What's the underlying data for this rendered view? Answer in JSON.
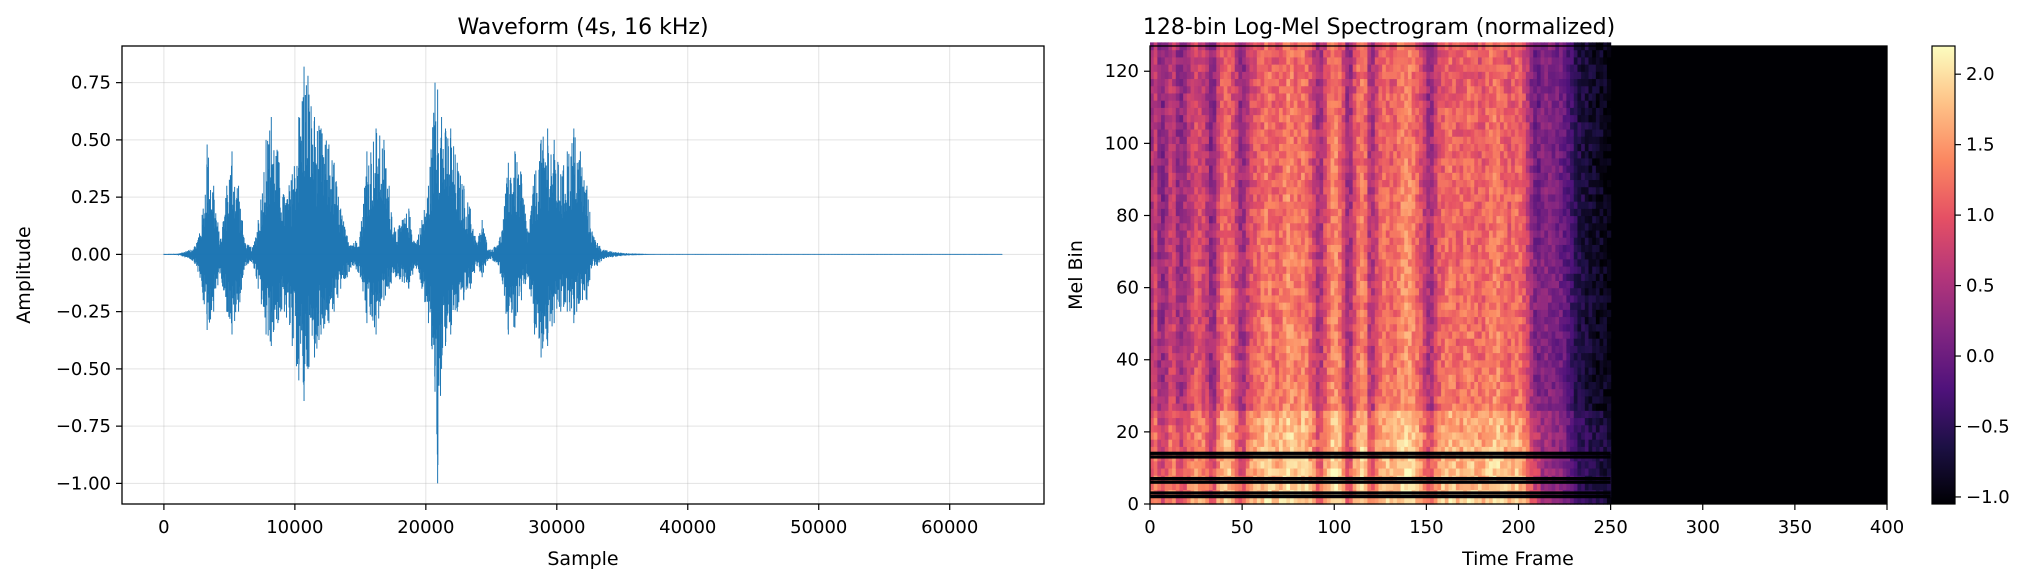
{
  "chart_data": [
    {
      "type": "line",
      "title": "Waveform (4s, 16 kHz)",
      "xlabel": "Sample",
      "ylabel": "Amplitude",
      "xlim": [
        -3200,
        67200
      ],
      "ylim": [
        -1.09,
        0.91
      ],
      "grid": true,
      "x_ticks": [
        0,
        10000,
        20000,
        30000,
        40000,
        50000,
        60000
      ],
      "x_tick_labels": [
        "0",
        "10000",
        "20000",
        "30000",
        "40000",
        "50000",
        "60000"
      ],
      "y_ticks": [
        0.75,
        0.5,
        0.25,
        0.0,
        -0.25,
        -0.5,
        -0.75,
        -1.0
      ],
      "y_tick_labels": [
        "0.75",
        "0.50",
        "0.25",
        "0.00",
        "−0.25",
        "−0.50",
        "−0.75",
        "−1.00"
      ],
      "color": "#1f77b4",
      "signal_range": [
        0,
        64000
      ],
      "envelope": {
        "x": [
          0,
          1000,
          2000,
          2500,
          3000,
          3300,
          3800,
          4300,
          4800,
          5200,
          5700,
          6200,
          6800,
          7200,
          7800,
          8200,
          8700,
          9200,
          9800,
          10300,
          10700,
          11000,
          11500,
          12000,
          12600,
          13000,
          13500,
          14000,
          14500,
          15000,
          15500,
          16200,
          16800,
          17200,
          17700,
          18200,
          18700,
          19200,
          19700,
          20200,
          20700,
          20900,
          21200,
          21500,
          21900,
          22400,
          22900,
          23400,
          23900,
          24300,
          24800,
          25200,
          25800,
          26300,
          26800,
          27300,
          27800,
          28300,
          28800,
          29300,
          29800,
          30300,
          30800,
          31300,
          31800,
          32300,
          32700,
          33100,
          33600,
          34500,
          35500,
          36500,
          37200,
          40000,
          50000,
          60000,
          64000
        ],
        "max": [
          0.002,
          0.003,
          0.02,
          0.05,
          0.2,
          0.48,
          0.3,
          0.06,
          0.3,
          0.45,
          0.3,
          0.05,
          0.03,
          0.15,
          0.5,
          0.6,
          0.45,
          0.25,
          0.35,
          0.6,
          0.82,
          0.78,
          0.6,
          0.55,
          0.48,
          0.4,
          0.2,
          0.08,
          0.05,
          0.1,
          0.45,
          0.55,
          0.5,
          0.3,
          0.1,
          0.15,
          0.2,
          0.05,
          0.15,
          0.3,
          0.75,
          0.72,
          0.6,
          0.55,
          0.55,
          0.4,
          0.3,
          0.2,
          0.05,
          0.15,
          0.02,
          0.03,
          0.1,
          0.4,
          0.45,
          0.35,
          0.1,
          0.35,
          0.5,
          0.55,
          0.5,
          0.35,
          0.45,
          0.55,
          0.45,
          0.3,
          0.1,
          0.05,
          0.02,
          0.01,
          0.005,
          0.003,
          0.001,
          0.001,
          0.001,
          0.001,
          0.001
        ],
        "min": [
          -0.002,
          -0.003,
          -0.02,
          -0.05,
          -0.2,
          -0.33,
          -0.25,
          -0.08,
          -0.25,
          -0.35,
          -0.25,
          -0.05,
          -0.04,
          -0.15,
          -0.35,
          -0.4,
          -0.3,
          -0.25,
          -0.4,
          -0.55,
          -0.64,
          -0.5,
          -0.45,
          -0.35,
          -0.3,
          -0.25,
          -0.15,
          -0.1,
          -0.05,
          -0.1,
          -0.3,
          -0.35,
          -0.2,
          -0.15,
          -0.1,
          -0.12,
          -0.15,
          -0.05,
          -0.15,
          -0.3,
          -0.6,
          -1.0,
          -0.5,
          -0.4,
          -0.35,
          -0.25,
          -0.2,
          -0.15,
          -0.05,
          -0.1,
          -0.02,
          -0.03,
          -0.1,
          -0.35,
          -0.32,
          -0.2,
          -0.1,
          -0.35,
          -0.45,
          -0.4,
          -0.3,
          -0.25,
          -0.25,
          -0.3,
          -0.2,
          -0.2,
          -0.05,
          -0.05,
          -0.02,
          -0.01,
          -0.005,
          -0.003,
          -0.001,
          -0.001,
          -0.001,
          -0.001,
          -0.001
        ]
      }
    },
    {
      "type": "heatmap",
      "title": "128-bin Log-Mel Spectrogram (normalized)",
      "xlabel": "Time Frame",
      "ylabel": "Mel Bin",
      "xlim": [
        0,
        400
      ],
      "ylim": [
        0,
        127
      ],
      "grid": false,
      "x_ticks": [
        0,
        50,
        100,
        150,
        200,
        250,
        300,
        350,
        400
      ],
      "x_tick_labels": [
        "0",
        "50",
        "100",
        "150",
        "200",
        "250",
        "300",
        "350",
        "400"
      ],
      "y_ticks": [
        0,
        20,
        40,
        60,
        80,
        100,
        120
      ],
      "y_tick_labels": [
        "0",
        "20",
        "40",
        "60",
        "80",
        "100",
        "120"
      ],
      "colormap": "magma",
      "colorbar": {
        "min": -1.05,
        "max": 2.2,
        "ticks": [
          2.0,
          1.5,
          1.0,
          0.5,
          0.0,
          -0.5,
          -1.0
        ],
        "tick_labels": [
          "2.0",
          "1.5",
          "1.0",
          "0.5",
          "0.0",
          "−0.5",
          "−1.0"
        ]
      },
      "active_frames": [
        0,
        250
      ],
      "silence_value": -1.05,
      "low_band_min_value_rows": [
        2,
        3,
        6,
        7,
        13,
        14
      ],
      "frame_energy": {
        "frames": [
          0,
          3,
          6,
          9,
          12,
          16,
          20,
          25,
          30,
          34,
          38,
          42,
          46,
          50,
          55,
          60,
          64,
          68,
          72,
          76,
          80,
          84,
          88,
          92,
          96,
          100,
          104,
          108,
          112,
          116,
          120,
          124,
          128,
          132,
          136,
          140,
          144,
          148,
          152,
          156,
          160,
          164,
          168,
          172,
          176,
          180,
          184,
          188,
          192,
          196,
          200,
          204,
          208,
          212,
          216,
          220,
          224,
          228,
          232,
          236,
          240,
          244,
          248,
          250
        ],
        "energy": [
          0.5,
          0.9,
          0.3,
          0.6,
          1.0,
          0.4,
          0.7,
          1.1,
          0.9,
          0.3,
          1.2,
          1.4,
          1.0,
          0.4,
          1.1,
          1.3,
          1.5,
          1.2,
          1.4,
          1.6,
          1.3,
          1.5,
          1.1,
          0.5,
          1.2,
          1.6,
          1.3,
          0.4,
          1.3,
          1.6,
          0.5,
          1.2,
          1.4,
          1.2,
          1.5,
          1.6,
          1.4,
          1.0,
          0.4,
          1.1,
          1.3,
          1.4,
          1.2,
          1.4,
          1.3,
          1.2,
          1.4,
          1.5,
          1.3,
          1.2,
          1.4,
          1.0,
          0.3,
          0.2,
          0.2,
          0.1,
          0.0,
          -0.3,
          -0.6,
          -0.7,
          -0.8,
          -0.85,
          -0.9,
          -1.0
        ]
      }
    }
  ]
}
